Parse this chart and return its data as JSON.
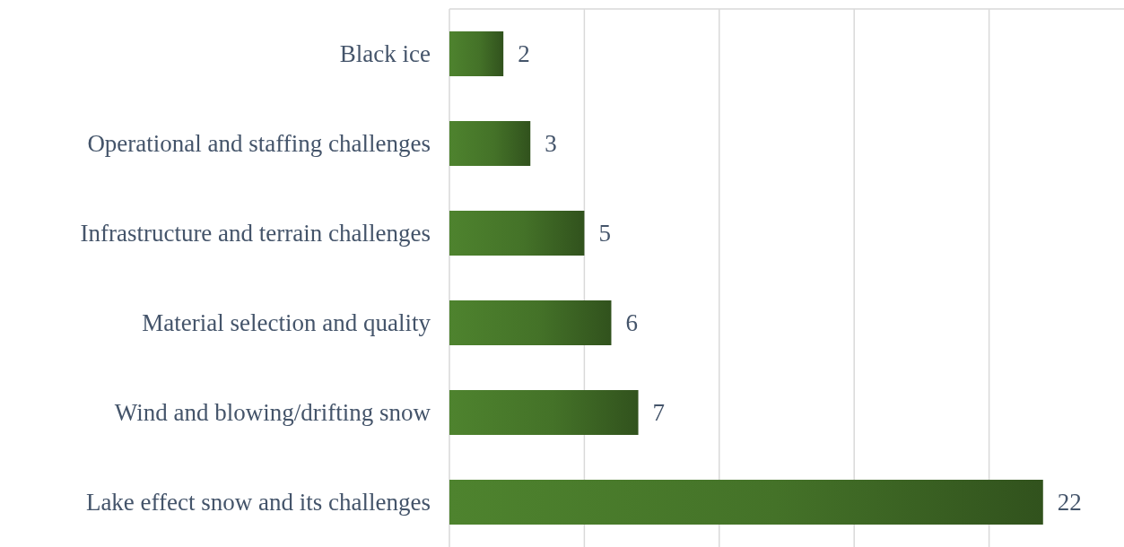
{
  "chart_data": {
    "type": "bar",
    "orientation": "horizontal",
    "categories": [
      "Black ice",
      "Operational and staffing challenges",
      "Infrastructure and terrain challenges",
      "Material selection and quality",
      "Wind and blowing/drifting snow",
      "Lake effect snow and its challenges"
    ],
    "values": [
      2,
      3,
      5,
      6,
      7,
      22
    ],
    "color": "#4e832e",
    "xlim": [
      0,
      25
    ],
    "xticks": [
      {
        "value": 0,
        "label": null
      },
      {
        "value": 5,
        "label": null
      },
      {
        "value": 10,
        "label": null
      },
      {
        "value": 15,
        "label": null
      },
      {
        "value": 20,
        "label": null
      }
    ],
    "tick_labels": "y",
    "grid": "x",
    "data_labels": true
  }
}
